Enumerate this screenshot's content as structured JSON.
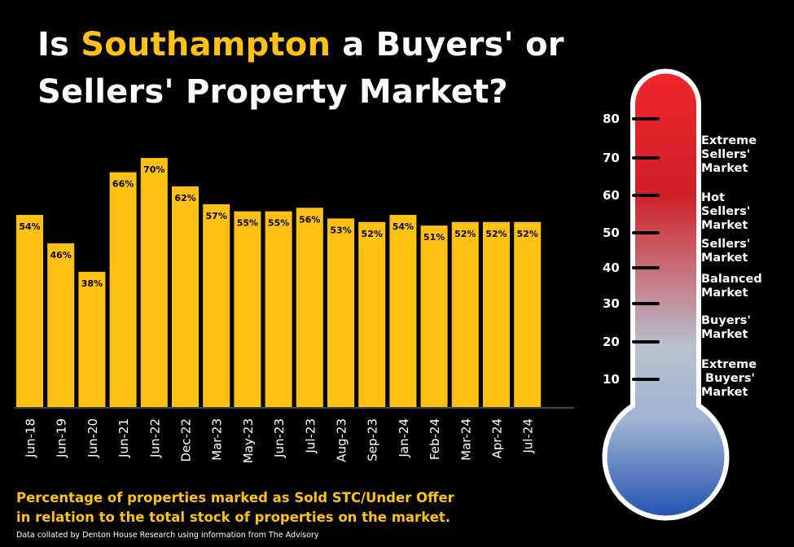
{
  "title": {
    "pre": "Is ",
    "highlight": "Southampton",
    "post": " a Buyers' or",
    "line2": "Sellers' Property Market?"
  },
  "colors": {
    "accent": "#ffc214",
    "bar": "#ffc214",
    "background": "#000000",
    "thermo_top": "#e8232a",
    "thermo_bottom": "#1f4fb0"
  },
  "caption": {
    "line1": "Percentage of properties marked as Sold STC/Under Offer",
    "line2": "in relation to the total stock of properties on the market."
  },
  "source": "Data collated by Denton House Research using information from The Advisory",
  "chart_data": {
    "type": "bar",
    "categories": [
      "Jun-18",
      "Jun-19",
      "Jun-20",
      "Jun-21",
      "Jun-22",
      "Dec-22",
      "Mar-23",
      "May-23",
      "Jun-23",
      "Jul-23",
      "Aug-23",
      "Sep-23",
      "Jan-24",
      "Feb-24",
      "Mar-24",
      "Apr-24",
      "Jul-24"
    ],
    "values": [
      54,
      46,
      38,
      66,
      70,
      62,
      57,
      55,
      55,
      56,
      53,
      52,
      54,
      51,
      52,
      52,
      52
    ],
    "data_labels": [
      "54%",
      "46%",
      "38%",
      "66%",
      "70%",
      "62%",
      "57%",
      "55%",
      "55%",
      "56%",
      "53%",
      "52%",
      "54%",
      "51%",
      "52%",
      "52%",
      "52%"
    ],
    "title": "",
    "xlabel": "",
    "ylabel": "",
    "ylim": [
      0,
      72
    ],
    "grid": false
  },
  "thermometer": {
    "ticks": [
      "80",
      "70",
      "60",
      "50",
      "40",
      "30",
      "20",
      "10"
    ],
    "zones": [
      {
        "lines": [
          "Extreme",
          "Sellers'",
          "Market"
        ]
      },
      {
        "lines": [
          "Hot",
          "Sellers'",
          "Market"
        ]
      },
      {
        "lines": [
          "Sellers'",
          "Market"
        ]
      },
      {
        "lines": [
          "Balanced",
          "Market"
        ]
      },
      {
        "lines": [
          "Buyers'",
          "Market"
        ]
      },
      {
        "lines": [
          "Extreme",
          " Buyers'",
          "Market"
        ]
      }
    ]
  }
}
